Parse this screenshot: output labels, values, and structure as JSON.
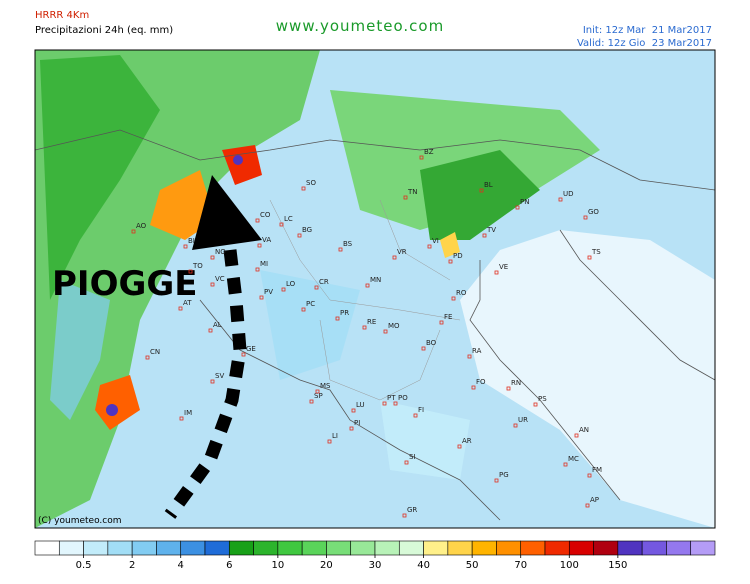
{
  "header": {
    "model": "HRRR 4Km",
    "product": "Precipitazioni 24h (eq. mm)",
    "site": "www.youmeteo.com",
    "init": "Init: 12z Mar  21 Mar2017",
    "valid": "Valid: 12z Gio  23 Mar2017"
  },
  "map": {
    "annotation": "PIOGGE",
    "copyright": "(C) youmeteo.com",
    "cities": [
      "BZ",
      "TN",
      "BL",
      "PN",
      "UD",
      "GO",
      "TS",
      "SO",
      "LC",
      "BG",
      "CO",
      "BS",
      "VR",
      "VI",
      "PD",
      "TV",
      "VE",
      "AO",
      "BI",
      "NO",
      "VA",
      "MI",
      "TO",
      "VC",
      "PV",
      "LO",
      "CR",
      "PC",
      "MN",
      "RO",
      "FE",
      "AT",
      "CN",
      "AL",
      "PR",
      "RE",
      "MO",
      "BO",
      "GE",
      "SV",
      "SP",
      "MS",
      "RA",
      "FO",
      "RN",
      "PS",
      "LU",
      "PT",
      "PO",
      "FI",
      "PI",
      "LI",
      "AR",
      "SI",
      "PG",
      "UR",
      "AN",
      "MC",
      "FM",
      "AP",
      "GR",
      "IM"
    ]
  },
  "colorbar": {
    "colors": [
      "#ffffff",
      "#e2f6fd",
      "#c2ecfa",
      "#a2def6",
      "#82ccf2",
      "#5fb2ec",
      "#3c90e2",
      "#1f6cd8",
      "#18a018",
      "#2cb42c",
      "#40c840",
      "#5ad45a",
      "#78de78",
      "#98e898",
      "#b8f2b8",
      "#d8fad8",
      "#fff08a",
      "#ffd44a",
      "#ffb400",
      "#ff9000",
      "#ff6000",
      "#f02a00",
      "#d80000",
      "#b00010",
      "#5034c0",
      "#7458e0",
      "#9478ee",
      "#b49cf6"
    ],
    "ticks": [
      0.5,
      2,
      4,
      6,
      10,
      20,
      30,
      40,
      50,
      70,
      100,
      150
    ]
  }
}
